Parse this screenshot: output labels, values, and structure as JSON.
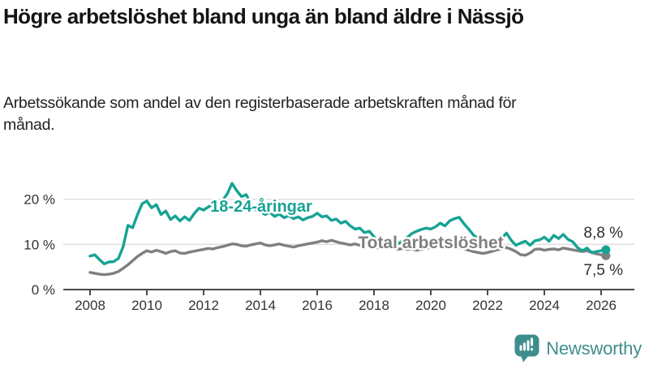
{
  "header": {
    "title": "Högre arbetslöshet bland unga än bland äldre i Nässjö",
    "subtitle": "Arbetssökande som andel av den registerbaserade arbetskraften månad för månad."
  },
  "footer": {
    "brand": "Newsworthy",
    "brand_color": "#3e8e8d",
    "logo_icon": "newsworthy-speech-bubble-barchart-icon"
  },
  "chart_data": {
    "type": "line",
    "title": "Högre arbetslöshet bland unga än bland äldre i Nässjö",
    "subtitle": "Arbetssökande som andel av den registerbaserade arbetskraften månad för månad.",
    "unit": "percent",
    "grid": "horizontal",
    "legend_position": "inline-labels",
    "xlim": [
      2007.06,
      2027.17
    ],
    "ylim": [
      0,
      24.5
    ],
    "x_tick_labels": [
      "2008",
      "2010",
      "2012",
      "2014",
      "2016",
      "2018",
      "2020",
      "2022",
      "2024",
      "2026"
    ],
    "x_tick_years": [
      2008,
      2010,
      2012,
      2014,
      2016,
      2018,
      2020,
      2022,
      2024,
      2026
    ],
    "y_ticks": [
      {
        "value": 0,
        "label": "0 %"
      },
      {
        "value": 10,
        "label": "10 %"
      },
      {
        "value": 20,
        "label": "20 %"
      }
    ],
    "colors": {
      "grid": "#dcdcdc",
      "axis": "#4a4a4a",
      "tick_text": "#333333",
      "end_label_text": "#2e2e2e"
    },
    "series": [
      {
        "name": "18-24-åringar",
        "color": "#16a394",
        "end_label": "8,8 %",
        "end_value": 8.8,
        "start_year": 2008.0,
        "step_months": 2,
        "values": [
          7.4,
          7.7,
          6.6,
          5.7,
          6.1,
          6.2,
          6.9,
          9.5,
          14.2,
          13.7,
          16.5,
          19.0,
          19.6,
          18.1,
          18.8,
          16.6,
          17.4,
          15.5,
          16.3,
          15.2,
          16.1,
          15.3,
          16.8,
          18.0,
          17.6,
          18.3,
          18.9,
          18.4,
          19.7,
          21.2,
          23.5,
          21.9,
          20.6,
          21.0,
          18.9,
          17.6,
          17.3,
          16.6,
          17.1,
          16.2,
          16.7,
          15.9,
          16.4,
          15.7,
          16.1,
          15.4,
          15.9,
          16.2,
          16.9,
          16.1,
          16.3,
          15.3,
          15.6,
          14.7,
          15.1,
          14.1,
          13.4,
          13.6,
          12.6,
          12.9,
          11.7,
          10.3,
          11.2,
          10.4,
          10.9,
          10.1,
          10.7,
          11.5,
          12.4,
          12.9,
          13.3,
          13.6,
          13.4,
          13.9,
          14.7,
          14.1,
          15.2,
          15.7,
          16.0,
          14.6,
          13.4,
          12.1,
          11.2,
          10.6,
          10.2,
          10.7,
          11.1,
          11.4,
          12.5,
          10.9,
          9.8,
          10.3,
          10.7,
          9.8,
          10.8,
          11.0,
          11.6,
          10.7,
          12.0,
          11.3,
          12.2,
          11.1,
          10.6,
          9.3,
          8.6,
          9.2,
          8.2,
          8.4,
          8.6,
          8.8
        ]
      },
      {
        "name": "Total arbetslöshet",
        "color": "#7f7f7f",
        "end_label": "7,5 %",
        "end_value": 7.5,
        "start_year": 2008.0,
        "step_months": 2,
        "values": [
          3.8,
          3.6,
          3.4,
          3.3,
          3.4,
          3.6,
          4.0,
          4.7,
          5.5,
          6.4,
          7.3,
          8.0,
          8.6,
          8.3,
          8.7,
          8.4,
          8.0,
          8.4,
          8.6,
          8.1,
          8.0,
          8.3,
          8.5,
          8.7,
          8.9,
          9.1,
          9.0,
          9.3,
          9.5,
          9.8,
          10.1,
          10.0,
          9.7,
          9.6,
          9.9,
          10.1,
          10.3,
          9.9,
          9.7,
          9.9,
          10.1,
          9.8,
          9.6,
          9.4,
          9.7,
          9.9,
          10.1,
          10.3,
          10.5,
          10.8,
          10.6,
          10.9,
          10.6,
          10.3,
          10.1,
          9.9,
          10.1,
          9.8,
          9.9,
          9.7,
          9.4,
          9.2,
          9.4,
          9.1,
          9.2,
          8.9,
          9.1,
          8.9,
          9.0,
          8.7,
          8.9,
          9.1,
          9.3,
          9.7,
          10.1,
          9.8,
          9.6,
          9.4,
          9.2,
          9.0,
          8.7,
          8.4,
          8.2,
          8.0,
          8.2,
          8.5,
          8.8,
          9.0,
          9.3,
          8.9,
          8.4,
          7.7,
          7.6,
          8.1,
          8.9,
          9.0,
          8.7,
          8.9,
          9.0,
          8.8,
          9.2,
          9.0,
          8.8,
          8.6,
          8.4,
          8.6,
          8.2,
          7.9,
          7.7,
          7.5
        ]
      }
    ]
  }
}
